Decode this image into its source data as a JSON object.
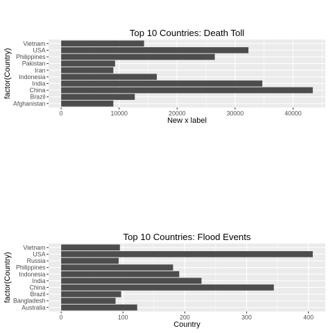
{
  "chart_data": [
    {
      "type": "bar",
      "orientation": "horizontal",
      "title": "Top 10 Countries: Death Toll",
      "xlabel": "New x label",
      "ylabel": "factor(Country)",
      "categories": [
        "Afghanistan",
        "Brazil",
        "China",
        "India",
        "Indonesia",
        "Iran",
        "Pakistan",
        "Philippines",
        "USA",
        "Vietnam"
      ],
      "values": [
        9000,
        12700,
        43400,
        34700,
        16500,
        9000,
        9300,
        26500,
        32300,
        14300
      ],
      "xlim": [
        -2170,
        45570
      ],
      "xticks": [
        0,
        10000,
        20000,
        30000,
        40000
      ],
      "xtick_labels": [
        "0",
        "10000",
        "20000",
        "30000",
        "40000"
      ],
      "grid": true
    },
    {
      "type": "bar",
      "orientation": "horizontal",
      "title": "Top 10 Countries: Flood Events",
      "xlabel": "Country",
      "ylabel": "factor(Country)",
      "categories": [
        "Australia",
        "Bangladesh",
        "Brazil",
        "China",
        "India",
        "Indonesia",
        "Philippines",
        "Russia",
        "USA",
        "Vietnam"
      ],
      "values": [
        123,
        88,
        97,
        344,
        227,
        191,
        181,
        93,
        407,
        95
      ],
      "xlim": [
        -20.35,
        427.35
      ],
      "xticks": [
        0,
        100,
        200,
        300,
        400
      ],
      "xtick_labels": [
        "0",
        "100",
        "200",
        "300",
        "400"
      ],
      "grid": true
    }
  ]
}
